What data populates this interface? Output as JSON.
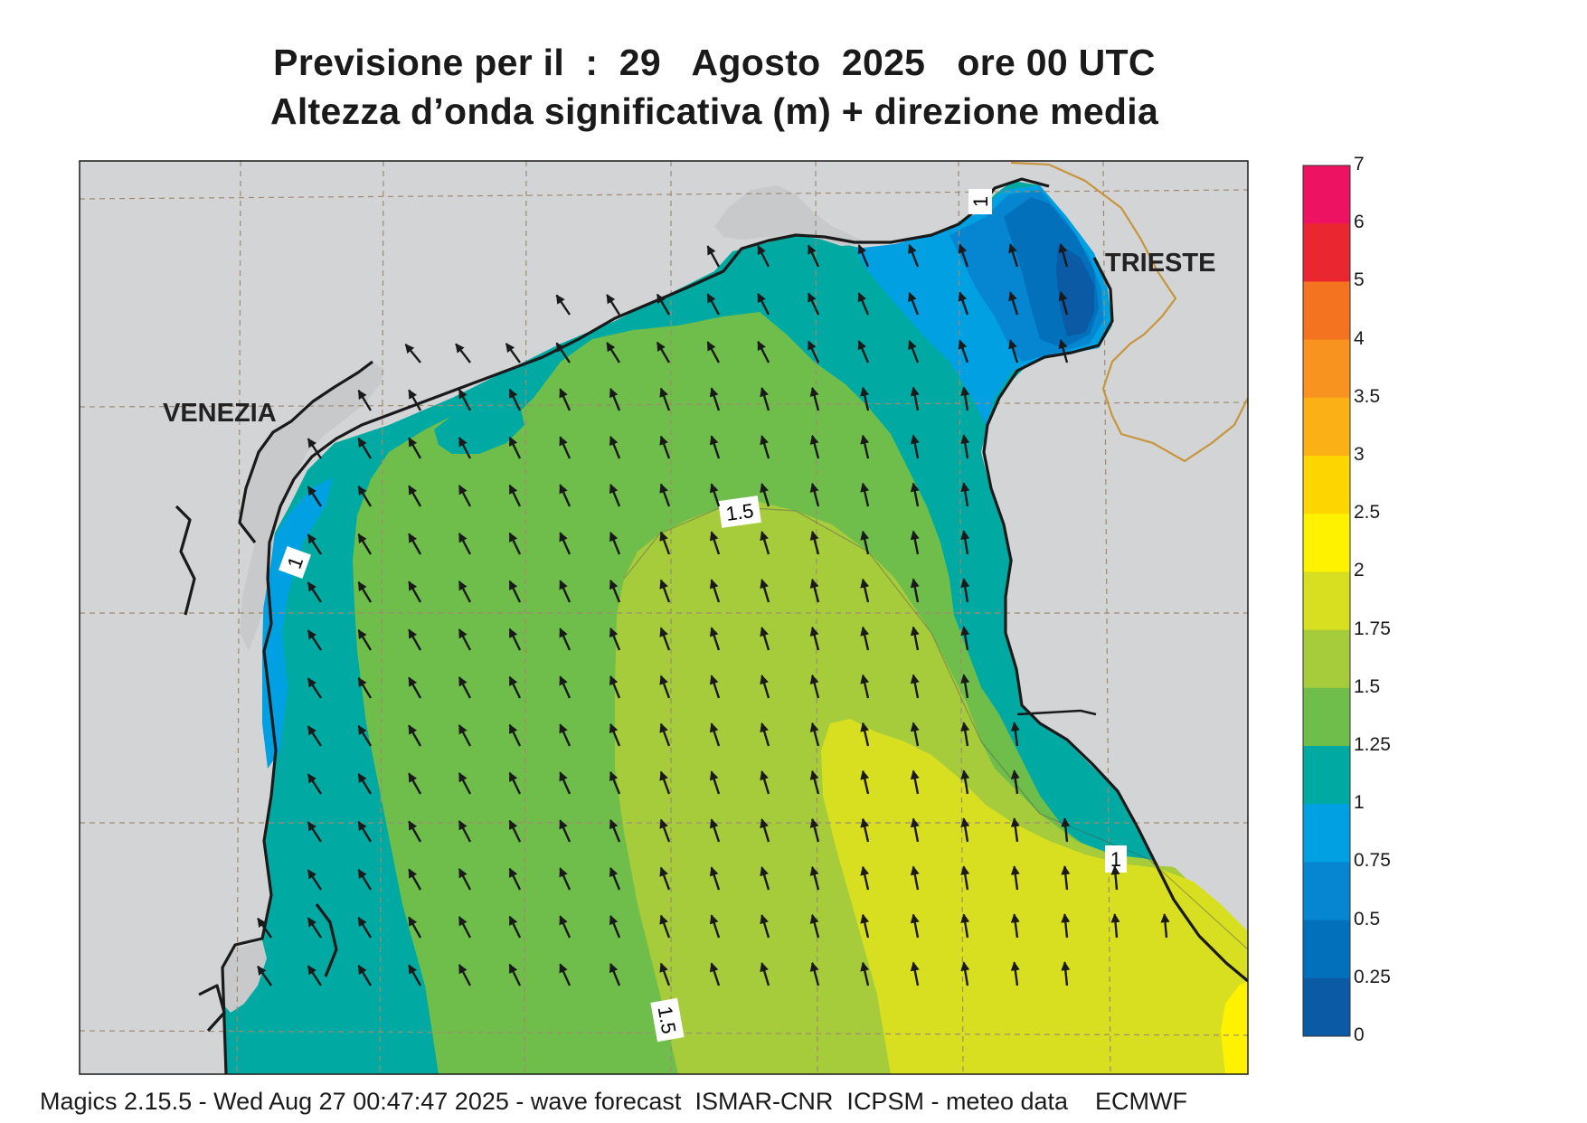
{
  "header": {
    "title_line1": "Previsione per il  :  29   Agosto  2025   ore 00 UTC",
    "title_line2": "Altezza d’onda significativa (m) + direzione media"
  },
  "map_labels": {
    "city_venezia": "VENEZIA",
    "city_trieste": "TRIESTE",
    "contour_1_5_top": "1.5",
    "contour_1_5_bottom": "1.5",
    "contour_1_left": "1",
    "contour_1_right": "1",
    "contour_1_topright": "1"
  },
  "colorbar": {
    "title": "",
    "levels": [
      "7",
      "6",
      "5",
      "4",
      "3.5",
      "3",
      "2.5",
      "2",
      "1.75",
      "1.5",
      "1.25",
      "1",
      "0.75",
      "0.5",
      "0.25",
      "0"
    ],
    "colors": [
      "#ed1262",
      "#ea2630",
      "#f37320",
      "#f7931e",
      "#fbb116",
      "#fdd501",
      "#fef200",
      "#d8df20",
      "#a6cc3b",
      "#6fbe4b",
      "#00aaa2",
      "#00a0e2",
      "#0685d0",
      "#0370bc",
      "#0b5aa6"
    ]
  },
  "wave_direction": "arrows pointing roughly north-northwest",
  "colors": {
    "land": "#d3d4d6",
    "coast": "#1a1a1a",
    "border": "#c8953c",
    "grid": "#a08a70"
  },
  "footer": {
    "text": "Magics 2.15.5 - Wed Aug 27 00:47:47 2025 - wave forecast  ISMAR-CNR  ICPSM - meteo data    ECMWF"
  }
}
